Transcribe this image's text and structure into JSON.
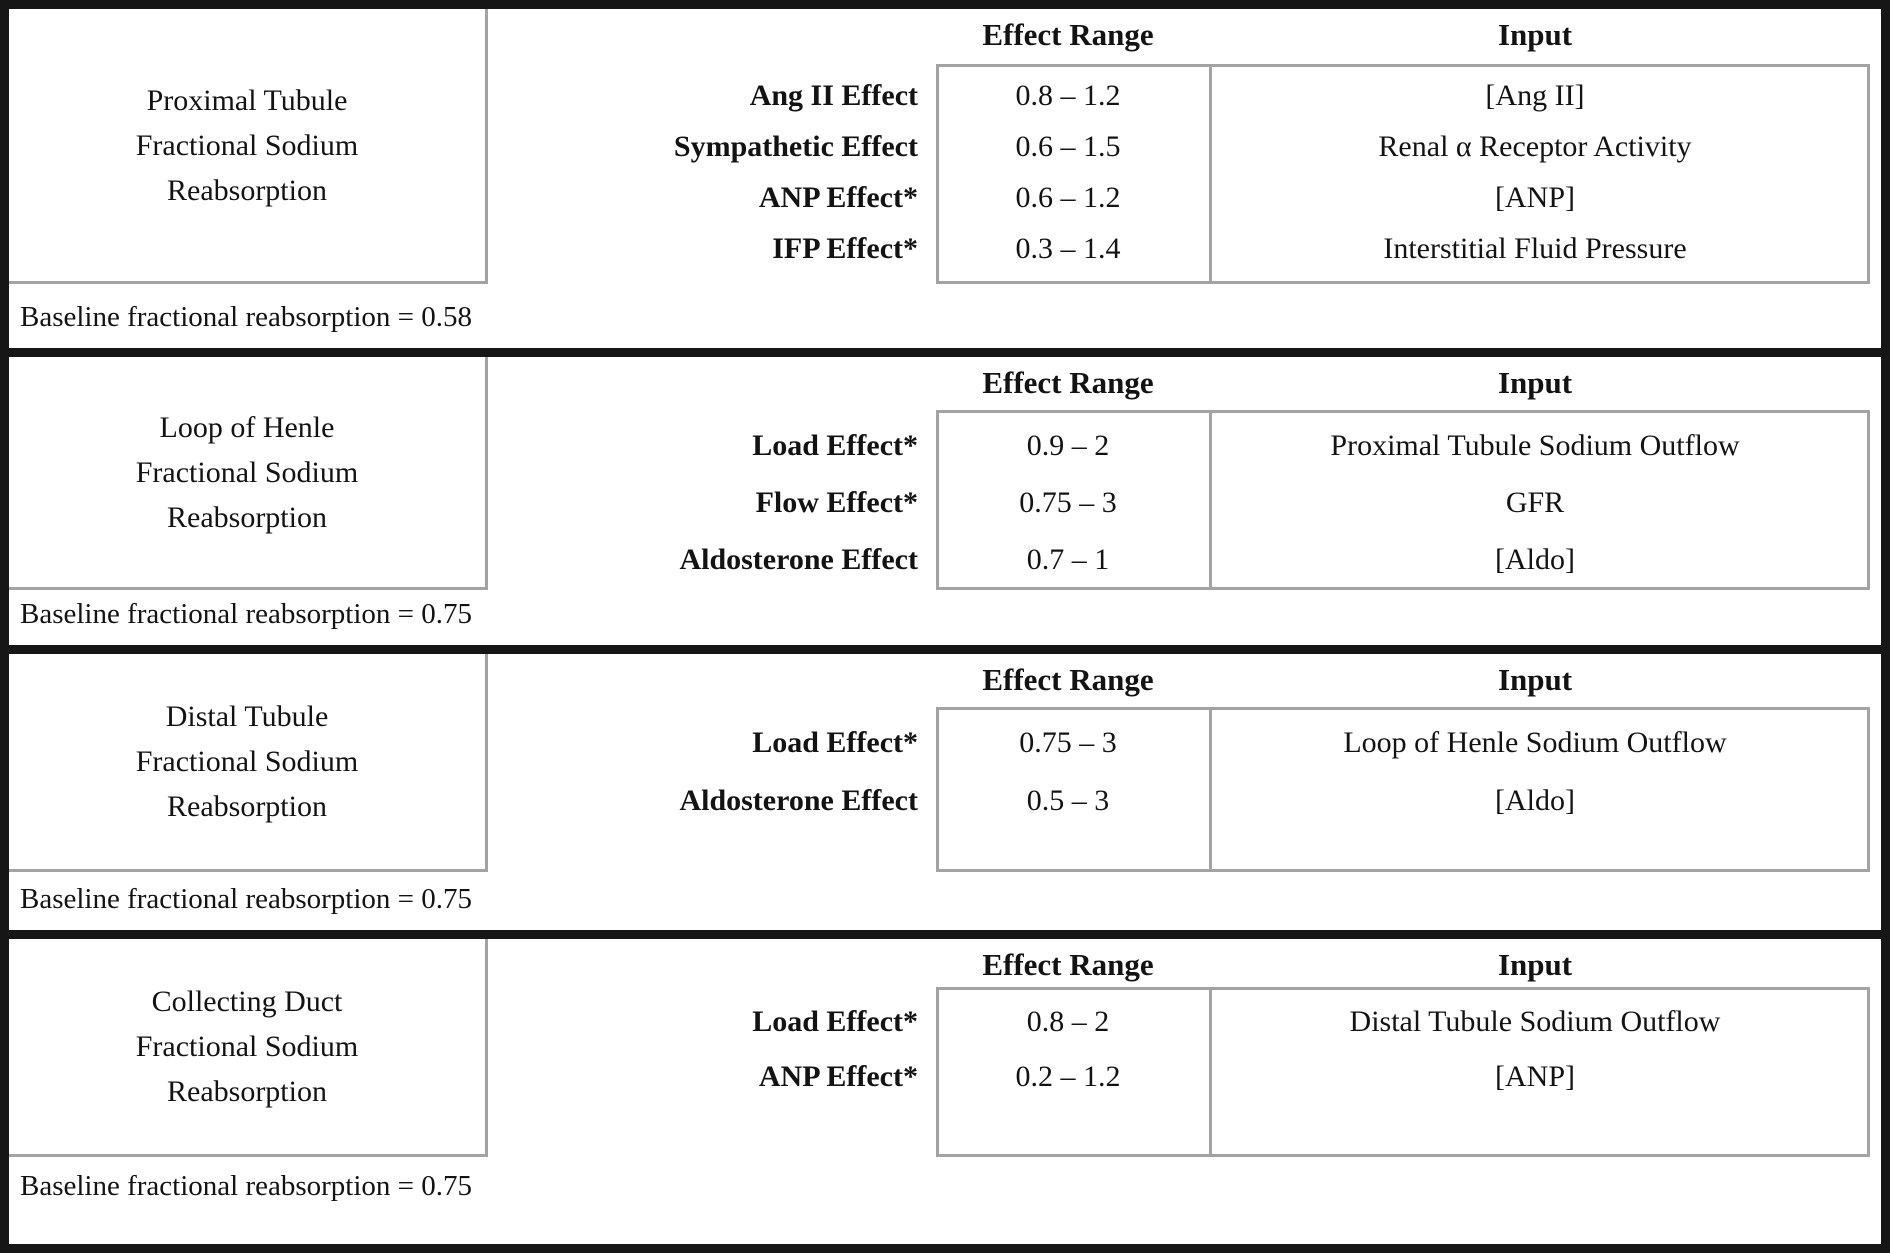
{
  "figure": {
    "column_headers": {
      "effect_range": "Effect Range",
      "input": "Input"
    },
    "colors": {
      "outer_border": "#161616",
      "inner_border": "#a3a3a3",
      "text": "#131313",
      "background": "#ffffff"
    },
    "sections": [
      {
        "title_lines": [
          "Proximal Tubule",
          "Fractional Sodium",
          "Reabsorption"
        ],
        "rows": [
          {
            "effect": "Ang II Effect",
            "range": "0.8 – 1.2",
            "input": "[Ang II]"
          },
          {
            "effect": "Sympathetic Effect",
            "range": "0.6 – 1.5",
            "input": "Renal α Receptor Activity"
          },
          {
            "effect": "ANP Effect*",
            "range": "0.6 – 1.2",
            "input": "[ANP]"
          },
          {
            "effect": "IFP Effect*",
            "range": "0.3 – 1.4",
            "input": "Interstitial Fluid Pressure"
          }
        ],
        "baseline_note": "Baseline fractional reabsorption = 0.58"
      },
      {
        "title_lines": [
          "Loop of Henle",
          "Fractional Sodium",
          "Reabsorption"
        ],
        "rows": [
          {
            "effect": "Load Effect*",
            "range": "0.9 – 2",
            "input": "Proximal Tubule Sodium Outflow"
          },
          {
            "effect": "Flow Effect*",
            "range": "0.75 – 3",
            "input": "GFR"
          },
          {
            "effect": "Aldosterone Effect",
            "range": "0.7 – 1",
            "input": "[Aldo]"
          }
        ],
        "baseline_note": "Baseline fractional reabsorption = 0.75"
      },
      {
        "title_lines": [
          "Distal Tubule",
          "Fractional Sodium",
          "Reabsorption"
        ],
        "rows": [
          {
            "effect": "Load Effect*",
            "range": "0.75 – 3",
            "input": "Loop of Henle Sodium Outflow"
          },
          {
            "effect": "Aldosterone Effect",
            "range": "0.5 – 3",
            "input": "[Aldo]"
          }
        ],
        "baseline_note": "Baseline fractional reabsorption = 0.75"
      },
      {
        "title_lines": [
          "Collecting Duct",
          "Fractional Sodium",
          "Reabsorption"
        ],
        "rows": [
          {
            "effect": "Load Effect*",
            "range": "0.8 – 2",
            "input": "Distal Tubule Sodium Outflow"
          },
          {
            "effect": "ANP Effect*",
            "range": "0.2 – 1.2",
            "input": "[ANP]"
          }
        ],
        "baseline_note": "Baseline fractional reabsorption = 0.75"
      }
    ]
  }
}
